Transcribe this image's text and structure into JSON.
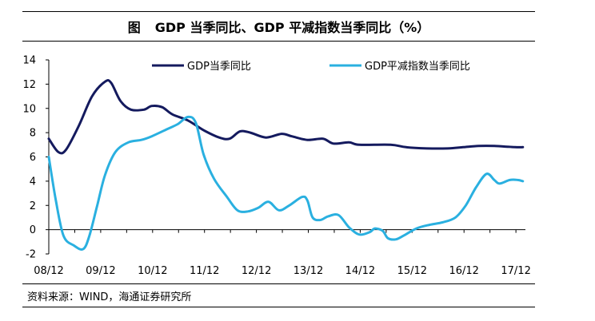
{
  "figure": {
    "label": "图",
    "title": "GDP 当季同比、GDP 平减指数当季同比（%）",
    "source": "资料来源：WIND，海通证券研究所"
  },
  "colors": {
    "gdp": "#141a5e",
    "deflator": "#2ab0e0"
  },
  "chart_data": {
    "type": "line",
    "title": "GDP 当季同比、GDP 平减指数当季同比（%）",
    "xlabel": "",
    "ylabel": "",
    "ylim": [
      -2,
      14
    ],
    "yticks": [
      -2,
      0,
      2,
      4,
      6,
      8,
      10,
      12,
      14
    ],
    "xlim": [
      2008.917,
      2018.1
    ],
    "xticks": [
      {
        "label": "08/12",
        "x": 2008.917
      },
      {
        "label": "09/12",
        "x": 2009.917
      },
      {
        "label": "10/12",
        "x": 2010.917
      },
      {
        "label": "11/12",
        "x": 2011.917
      },
      {
        "label": "12/12",
        "x": 2012.917
      },
      {
        "label": "13/12",
        "x": 2013.917
      },
      {
        "label": "14/12",
        "x": 2014.917
      },
      {
        "label": "15/12",
        "x": 2015.917
      },
      {
        "label": "16/12",
        "x": 2016.917
      },
      {
        "label": "17/12",
        "x": 2017.917
      }
    ],
    "legend_position": "top",
    "series": [
      {
        "name": "GDP当季同比",
        "points": [
          [
            2008.917,
            7.5
          ],
          [
            2009.1,
            6.4
          ],
          [
            2009.25,
            6.6
          ],
          [
            2009.5,
            8.6
          ],
          [
            2009.75,
            11.0
          ],
          [
            2010.0,
            12.2
          ],
          [
            2010.12,
            12.1
          ],
          [
            2010.3,
            10.6
          ],
          [
            2010.5,
            9.9
          ],
          [
            2010.75,
            9.9
          ],
          [
            2010.9,
            10.2
          ],
          [
            2011.1,
            10.1
          ],
          [
            2011.3,
            9.5
          ],
          [
            2011.6,
            9.0
          ],
          [
            2011.9,
            8.2
          ],
          [
            2012.2,
            7.6
          ],
          [
            2012.4,
            7.5
          ],
          [
            2012.6,
            8.1
          ],
          [
            2012.8,
            8.0
          ],
          [
            2013.1,
            7.6
          ],
          [
            2013.4,
            7.9
          ],
          [
            2013.6,
            7.7
          ],
          [
            2013.9,
            7.4
          ],
          [
            2014.2,
            7.5
          ],
          [
            2014.4,
            7.1
          ],
          [
            2014.7,
            7.2
          ],
          [
            2014.9,
            7.0
          ],
          [
            2015.5,
            7.0
          ],
          [
            2015.8,
            6.8
          ],
          [
            2016.2,
            6.7
          ],
          [
            2016.6,
            6.7
          ],
          [
            2016.9,
            6.8
          ],
          [
            2017.2,
            6.9
          ],
          [
            2017.5,
            6.9
          ],
          [
            2017.9,
            6.8
          ],
          [
            2018.05,
            6.8
          ]
        ]
      },
      {
        "name": "GDP平减指数当季同比",
        "points": [
          [
            2008.917,
            6.0
          ],
          [
            2009.05,
            2.5
          ],
          [
            2009.2,
            -0.5
          ],
          [
            2009.4,
            -1.3
          ],
          [
            2009.58,
            -1.6
          ],
          [
            2009.7,
            -0.5
          ],
          [
            2009.85,
            2.0
          ],
          [
            2010.0,
            4.5
          ],
          [
            2010.2,
            6.4
          ],
          [
            2010.45,
            7.2
          ],
          [
            2010.7,
            7.4
          ],
          [
            2010.9,
            7.7
          ],
          [
            2011.2,
            8.3
          ],
          [
            2011.4,
            8.7
          ],
          [
            2011.6,
            9.3
          ],
          [
            2011.75,
            8.8
          ],
          [
            2011.9,
            6.2
          ],
          [
            2012.1,
            4.2
          ],
          [
            2012.35,
            2.7
          ],
          [
            2012.55,
            1.6
          ],
          [
            2012.75,
            1.5
          ],
          [
            2012.95,
            1.8
          ],
          [
            2013.15,
            2.3
          ],
          [
            2013.35,
            1.6
          ],
          [
            2013.55,
            2.0
          ],
          [
            2013.8,
            2.7
          ],
          [
            2013.9,
            2.4
          ],
          [
            2014.0,
            1.0
          ],
          [
            2014.15,
            0.8
          ],
          [
            2014.3,
            1.1
          ],
          [
            2014.5,
            1.2
          ],
          [
            2014.7,
            0.2
          ],
          [
            2014.9,
            -0.4
          ],
          [
            2015.1,
            -0.2
          ],
          [
            2015.2,
            0.1
          ],
          [
            2015.35,
            -0.1
          ],
          [
            2015.45,
            -0.7
          ],
          [
            2015.6,
            -0.8
          ],
          [
            2015.75,
            -0.5
          ],
          [
            2016.0,
            0.1
          ],
          [
            2016.25,
            0.4
          ],
          [
            2016.5,
            0.6
          ],
          [
            2016.75,
            1.0
          ],
          [
            2016.95,
            2.0
          ],
          [
            2017.15,
            3.5
          ],
          [
            2017.35,
            4.6
          ],
          [
            2017.5,
            4.1
          ],
          [
            2017.6,
            3.8
          ],
          [
            2017.8,
            4.1
          ],
          [
            2017.95,
            4.1
          ],
          [
            2018.05,
            4.0
          ]
        ]
      }
    ]
  }
}
